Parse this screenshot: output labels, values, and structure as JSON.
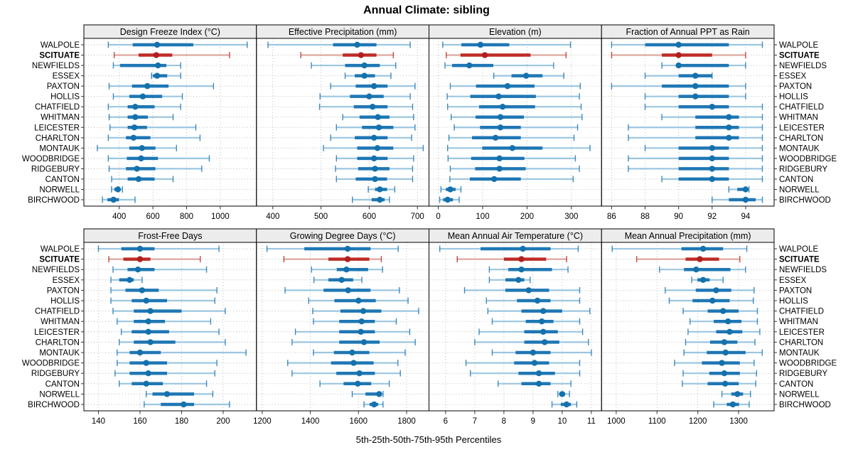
{
  "title": "Annual Climate: sibling",
  "caption": "5th-25th-50th-75th-95th Percentiles",
  "percentiles": [
    "5th",
    "25th",
    "50th",
    "75th",
    "95th"
  ],
  "highlight_site": "SCITUATE",
  "sites": [
    "WALPOLE",
    "SCITUATE",
    "NEWFIELDS",
    "ESSEX",
    "PAXTON",
    "HOLLIS",
    "CHATFIELD",
    "WHITMAN",
    "LEICESTER",
    "CHARLTON",
    "MONTAUK",
    "WOODBRIDGE",
    "RIDGEBURY",
    "CANTON",
    "NORWELL",
    "BIRCHWOOD"
  ],
  "colors": {
    "series_line": "#1F77B4",
    "series_dot": "#1471AC",
    "series_faint": "#9CC6E0",
    "highlight_line": "#BE2B26",
    "highlight_dot": "#B01F1F",
    "highlight_faint": "#DEA69F",
    "strip_bg": "#ECECEC",
    "panel_border": "#000000",
    "grid": "#BEBEBE",
    "tick": "#333333",
    "text": "#000000"
  },
  "chart_data": [
    {
      "type": "dotplot",
      "title": "Design Freeze Index (°C)",
      "xlim": [
        190,
        1215
      ],
      "ticks": [
        400,
        600,
        800,
        1000
      ],
      "values": [
        [
          335,
          480,
          625,
          840,
          1160
        ],
        [
          370,
          515,
          620,
          715,
          1055
        ],
        [
          365,
          405,
          630,
          680,
          765
        ],
        [
          592,
          600,
          625,
          685,
          765
        ],
        [
          340,
          476,
          567,
          693,
          960
        ],
        [
          365,
          460,
          540,
          655,
          775
        ],
        [
          335,
          450,
          495,
          610,
          765
        ],
        [
          340,
          450,
          495,
          570,
          720
        ],
        [
          345,
          450,
          490,
          565,
          855
        ],
        [
          335,
          440,
          485,
          585,
          880
        ],
        [
          270,
          460,
          535,
          615,
          740
        ],
        [
          335,
          445,
          530,
          630,
          935
        ],
        [
          340,
          440,
          505,
          615,
          890
        ],
        [
          355,
          450,
          515,
          610,
          720
        ],
        [
          354,
          371,
          392,
          408,
          419
        ],
        [
          300,
          330,
          366,
          398,
          494
        ]
      ]
    },
    {
      "type": "dotplot",
      "title": "Effective Precipitation (mm)",
      "xlim": [
        366,
        724
      ],
      "ticks": [
        400,
        500,
        600,
        700
      ],
      "values": [
        [
          390,
          525,
          575,
          615,
          685
        ],
        [
          458,
          545,
          583,
          615,
          650
        ],
        [
          480,
          550,
          590,
          622,
          655
        ],
        [
          550,
          570,
          590,
          612,
          645
        ],
        [
          520,
          572,
          610,
          638,
          695
        ],
        [
          498,
          560,
          600,
          630,
          685
        ],
        [
          497,
          568,
          607,
          638,
          690
        ],
        [
          545,
          580,
          618,
          642,
          692
        ],
        [
          532,
          585,
          620,
          650,
          695
        ],
        [
          520,
          570,
          610,
          638,
          688
        ],
        [
          505,
          575,
          617,
          650,
          712
        ],
        [
          532,
          575,
          610,
          638,
          692
        ],
        [
          530,
          577,
          612,
          642,
          690
        ],
        [
          532,
          572,
          612,
          637,
          690
        ],
        [
          598,
          612,
          622,
          637,
          653
        ],
        [
          565,
          605,
          622,
          632,
          642
        ]
      ]
    },
    {
      "type": "dotplot",
      "title": "Elevation (m)",
      "xlim": [
        -21,
        368
      ],
      "ticks": [
        0,
        100,
        200,
        300
      ],
      "values": [
        [
          10,
          52,
          95,
          160,
          298
        ],
        [
          18,
          50,
          105,
          208,
          288
        ],
        [
          15,
          31,
          70,
          124,
          260
        ],
        [
          125,
          165,
          198,
          235,
          283
        ],
        [
          27,
          85,
          156,
          217,
          320
        ],
        [
          20,
          72,
          136,
          220,
          318
        ],
        [
          21,
          92,
          145,
          218,
          322
        ],
        [
          29,
          84,
          140,
          193,
          324
        ],
        [
          36,
          94,
          140,
          186,
          314
        ],
        [
          24,
          76,
          129,
          186,
          306
        ],
        [
          21,
          99,
          167,
          235,
          342
        ],
        [
          22,
          74,
          138,
          194,
          309
        ],
        [
          27,
          83,
          138,
          197,
          318
        ],
        [
          26,
          71,
          126,
          186,
          304
        ],
        [
          6,
          17,
          27,
          39,
          51
        ],
        [
          3,
          11,
          21,
          33,
          47
        ]
      ]
    },
    {
      "type": "dotplot",
      "title": "Fraction of Annual PPT as Rain",
      "xlim": [
        85.4,
        95.7
      ],
      "ticks": [
        86,
        88,
        90,
        92,
        94
      ],
      "values": [
        [
          86,
          88,
          90,
          93,
          95
        ],
        [
          86,
          89,
          90,
          92,
          94
        ],
        [
          89,
          90,
          90,
          93,
          94
        ],
        [
          88,
          90,
          91,
          92,
          92
        ],
        [
          86,
          89,
          91,
          93,
          94
        ],
        [
          88,
          90,
          91,
          93,
          94
        ],
        [
          88,
          90,
          92,
          93,
          95
        ],
        [
          89,
          91,
          93,
          93.6,
          95
        ],
        [
          87,
          91,
          93,
          93.6,
          95
        ],
        [
          87,
          91,
          93,
          93.6,
          95
        ],
        [
          88,
          90,
          92,
          93,
          95
        ],
        [
          87,
          90,
          92,
          93,
          95
        ],
        [
          87,
          90,
          92,
          93,
          95
        ],
        [
          89,
          90,
          92,
          93,
          95
        ],
        [
          93,
          93.5,
          94,
          94,
          94.2
        ],
        [
          92,
          93,
          94,
          94.6,
          95
        ]
      ]
    },
    {
      "type": "dotplot",
      "title": "Frost-Free Days",
      "xlim": [
        133,
        216
      ],
      "ticks": [
        140,
        160,
        180,
        200
      ],
      "values": [
        [
          140,
          151,
          160,
          167,
          198
        ],
        [
          145,
          152,
          160,
          165,
          189
        ],
        [
          147,
          154,
          159,
          167,
          192
        ],
        [
          146,
          150,
          155,
          157,
          161
        ],
        [
          146,
          153,
          161,
          169,
          197
        ],
        [
          146,
          156,
          163,
          173,
          196
        ],
        [
          147,
          157,
          165,
          180,
          201
        ],
        [
          149,
          157,
          164,
          172,
          194
        ],
        [
          151,
          156,
          164,
          174,
          198
        ],
        [
          150,
          157,
          165,
          177,
          201
        ],
        [
          149,
          155,
          160,
          170,
          211
        ],
        [
          149,
          155,
          163,
          173,
          197
        ],
        [
          148,
          155,
          164,
          173,
          196
        ],
        [
          150,
          156,
          163,
          171,
          192
        ],
        [
          163,
          166,
          173,
          186,
          195
        ],
        [
          162,
          170,
          181,
          186,
          203
        ]
      ]
    },
    {
      "type": "dotplot",
      "title": "Growing Degree Days (°C)",
      "xlim": [
        1176,
        1893
      ],
      "ticks": [
        1200,
        1400,
        1600,
        1800
      ],
      "values": [
        [
          1220,
          1375,
          1555,
          1650,
          1765
        ],
        [
          1290,
          1475,
          1555,
          1645,
          1695
        ],
        [
          1405,
          1510,
          1550,
          1640,
          1700
        ],
        [
          1415,
          1475,
          1530,
          1578,
          1614
        ],
        [
          1295,
          1455,
          1557,
          1650,
          1770
        ],
        [
          1393,
          1500,
          1600,
          1672,
          1806
        ],
        [
          1410,
          1525,
          1620,
          1695,
          1850
        ],
        [
          1413,
          1520,
          1613,
          1668,
          1757
        ],
        [
          1338,
          1520,
          1610,
          1668,
          1813
        ],
        [
          1324,
          1520,
          1623,
          1688,
          1836
        ],
        [
          1413,
          1498,
          1574,
          1645,
          1794
        ],
        [
          1306,
          1486,
          1580,
          1663,
          1764
        ],
        [
          1324,
          1508,
          1604,
          1668,
          1774
        ],
        [
          1440,
          1538,
          1597,
          1653,
          1728
        ],
        [
          1574,
          1629,
          1686,
          1696,
          1702
        ],
        [
          1623,
          1646,
          1665,
          1682,
          1702
        ]
      ]
    },
    {
      "type": "dotplot",
      "title": "Mean Annual Air Temperature (°C)",
      "xlim": [
        5.43,
        11.35
      ],
      "ticks": [
        6,
        7,
        8,
        9,
        10,
        11
      ],
      "values": [
        [
          5.8,
          7.2,
          8.65,
          9.6,
          10.55
        ],
        [
          6.4,
          8.0,
          8.6,
          9.45,
          10.15
        ],
        [
          7.5,
          8.15,
          8.6,
          9.65,
          10.2
        ],
        [
          7.5,
          8.05,
          8.5,
          8.7,
          8.9
        ],
        [
          6.65,
          8.05,
          8.85,
          9.55,
          10.6
        ],
        [
          7.4,
          8.45,
          9.15,
          9.6,
          10.6
        ],
        [
          7.45,
          8.6,
          9.35,
          10.0,
          10.95
        ],
        [
          7.6,
          8.75,
          9.3,
          9.7,
          10.6
        ],
        [
          7.15,
          8.7,
          9.35,
          9.85,
          10.7
        ],
        [
          7.0,
          8.7,
          9.4,
          9.9,
          10.9
        ],
        [
          7.6,
          8.4,
          9.0,
          9.6,
          11.0
        ],
        [
          6.7,
          8.35,
          9.05,
          9.55,
          10.6
        ],
        [
          6.85,
          8.5,
          9.2,
          9.75,
          10.6
        ],
        [
          7.8,
          8.6,
          9.2,
          9.6,
          10.3
        ],
        [
          9.85,
          9.9,
          10.0,
          10.1,
          10.25
        ],
        [
          9.65,
          9.95,
          10.15,
          10.3,
          10.5
        ]
      ]
    },
    {
      "type": "dotplot",
      "title": "Mean Annual Precipitation (mm)",
      "xlim": [
        964,
        1387
      ],
      "ticks": [
        1000,
        1100,
        1200,
        1300
      ],
      "values": [
        [
          990,
          1160,
          1213,
          1262,
          1320
        ],
        [
          1050,
          1170,
          1205,
          1252,
          1303
        ],
        [
          1106,
          1166,
          1196,
          1280,
          1317
        ],
        [
          1185,
          1199,
          1213,
          1229,
          1262
        ],
        [
          1120,
          1195,
          1245,
          1282,
          1338
        ],
        [
          1130,
          1187,
          1236,
          1278,
          1336
        ],
        [
          1164,
          1224,
          1262,
          1300,
          1346
        ],
        [
          1181,
          1239,
          1274,
          1307,
          1346
        ],
        [
          1176,
          1245,
          1278,
          1309,
          1352
        ],
        [
          1170,
          1230,
          1265,
          1297,
          1340
        ],
        [
          1166,
          1222,
          1268,
          1317,
          1358
        ],
        [
          1143,
          1210,
          1259,
          1303,
          1338
        ],
        [
          1164,
          1228,
          1265,
          1303,
          1344
        ],
        [
          1162,
          1224,
          1267,
          1300,
          1342
        ],
        [
          1259,
          1282,
          1297,
          1311,
          1329
        ],
        [
          1239,
          1271,
          1286,
          1301,
          1326
        ]
      ]
    }
  ]
}
